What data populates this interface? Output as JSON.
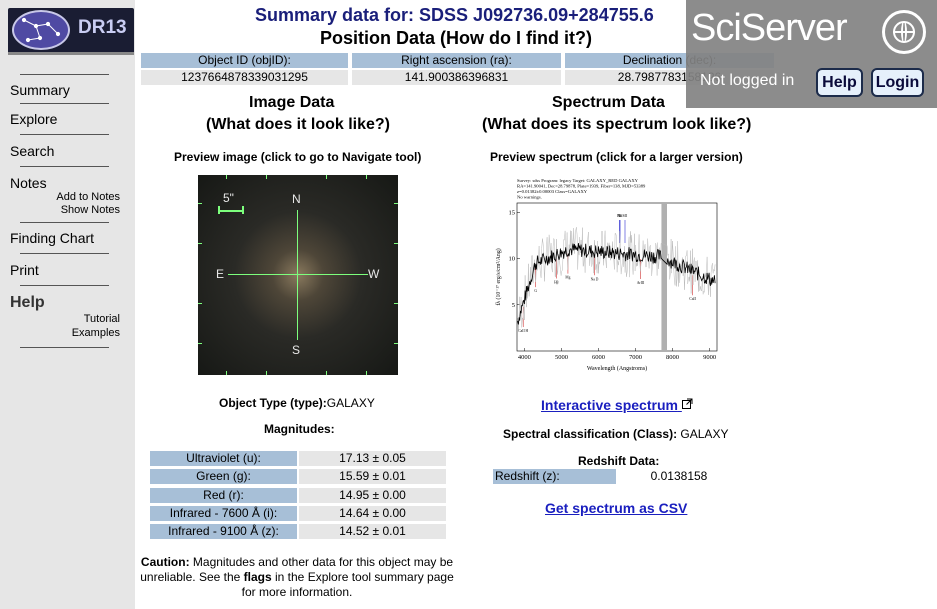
{
  "logo": {
    "text": "DR13"
  },
  "nav": {
    "summary": "Summary",
    "explore": "Explore",
    "search": "Search",
    "notes": "Notes",
    "add_notes": "Add to Notes",
    "show_notes": "Show Notes",
    "finding_chart": "Finding Chart",
    "print": "Print",
    "help": "Help",
    "tutorial": "Tutorial",
    "examples": "Examples"
  },
  "header": {
    "summary_title": "Summary data for:  SDSS J092736.09+284755.6",
    "position_title": "Position Data (How do I find it?)"
  },
  "position": {
    "headers": [
      "Object ID  (objID):",
      "Right ascension  (ra):",
      "Declination  (dec):"
    ],
    "values": [
      "1237664878339031295",
      "141.900386396831",
      "28.7987783158126"
    ]
  },
  "sciserver": {
    "logo": "SciServer",
    "not_logged_in": "Not logged in",
    "help": "Help",
    "login": "Login"
  },
  "image_section": {
    "title": "Image Data",
    "subtitle": "(What does it look like?)",
    "preview_caption": "Preview image (click to go to Navigate tool)",
    "scale": "5\"",
    "compass": {
      "n": "N",
      "s": "S",
      "e": "E",
      "w": "W"
    },
    "object_type_label": "Object Type (type):",
    "object_type_value": "GALAXY",
    "magnitudes_title": "Magnitudes:"
  },
  "magnitudes": [
    {
      "label": "Ultraviolet (u):",
      "value": "17.13 ± 0.05"
    },
    {
      "label": "Green (g):",
      "value": "15.59 ± 0.01"
    },
    {
      "label": "Red (r):",
      "value": "14.95 ± 0.00"
    },
    {
      "label": "Infrared - 7600 Å (i):",
      "value": "14.64 ± 0.00"
    },
    {
      "label": "Infrared - 9100 Å (z):",
      "value": "14.52 ± 0.01"
    }
  ],
  "caution": {
    "lead": "Caution:",
    "text1": " Magnitudes and other data for this object may be unreliable. See the ",
    "flags": "flags",
    "text2": " in the ",
    "explore": "Explore",
    "text3": " tool summary page for more information."
  },
  "spectrum_section": {
    "title": "Spectrum Data",
    "subtitle": "(What does its spectrum look like?)",
    "preview_caption": "Preview spectrum (click for a larger version)",
    "interactive_link": "Interactive spectrum",
    "class_label": "Spectral classification (Class):",
    "class_value": "GALAXY",
    "redshift_title": "Redshift Data:",
    "redshift_label": "Redshift (z):",
    "redshift_value": "0.0138158",
    "csv_link": "Get spectrum as CSV"
  },
  "spectrum_plot": {
    "header_lines": [
      "Survey: sdss  Program: legacy  Target: GALAXY_RED GALAXY",
      "RA=141.90041, Dec=28.79878, Plate=1939, Fiber=138, MJD=53389",
      "z=0.01382±0.00003  Class=GALAXY",
      "No warnings."
    ],
    "xlabel": "Wavelength (Angstroms)",
    "ylabel": "fλ (10⁻¹⁷ erg/s/cm²/Ang)",
    "x_ticks": [
      "4000",
      "5000",
      "6000",
      "7000",
      "8000",
      "9000"
    ],
    "y_ticks": [
      "5",
      "10",
      "15"
    ],
    "x_range": [
      3800,
      9200
    ],
    "y_range": [
      0,
      16
    ],
    "lines": [
      {
        "name": "CaII H",
        "x": 3968
      },
      {
        "name": "G",
        "x": 4304
      },
      {
        "name": "Hβ",
        "x": 4861
      },
      {
        "name": "Mg",
        "x": 5175
      },
      {
        "name": "Na D",
        "x": 5893
      },
      {
        "name": "Hα",
        "x": 6563
      },
      {
        "name": "NII",
        "x": 6583
      },
      {
        "name": "SII",
        "x": 6716
      },
      {
        "name": "ArIII",
        "x": 7135
      },
      {
        "name": "CaII",
        "x": 8542
      }
    ],
    "line_labels": [
      "CaII H",
      "OII",
      "Hδ",
      "Hγ",
      "G",
      "Hβ",
      "OIII",
      "Mg",
      "Na D",
      "OI",
      "NII",
      "Hα",
      "SII",
      "ArIII",
      "CaII"
    ]
  }
}
